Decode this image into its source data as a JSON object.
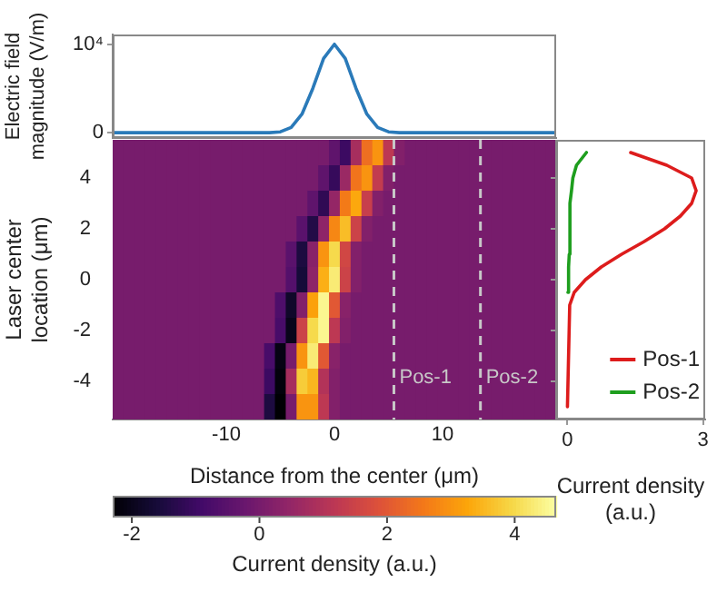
{
  "chart_data": [
    {
      "type": "line",
      "ylabel": "Electric field magnitude (V/m)",
      "x": [
        -20.5,
        -8,
        -6,
        -5,
        -4,
        -3,
        -2,
        -1,
        0,
        1,
        2,
        3,
        4,
        5,
        6,
        8,
        20.5
      ],
      "series": [
        {
          "color": "#2a7ab9",
          "values": [
            0,
            0,
            0,
            100,
            600,
            2100,
            5000,
            8400,
            10000,
            8400,
            5000,
            2100,
            600,
            100,
            0,
            0,
            0
          ]
        }
      ],
      "xlim": [
        -20.5,
        20.5
      ],
      "ylim": [
        -600,
        11100
      ],
      "yticks": [
        0,
        {
          "value": 10000,
          "label": "10⁴"
        }
      ],
      "tick_labels": "y"
    },
    {
      "type": "heatmap",
      "xlabel": "Distance from the center (μm)",
      "ylabel": "Laser center location (μm)",
      "x": [
        -20,
        -19,
        -18,
        -17,
        -16,
        -15,
        -14,
        -13,
        -12,
        -11,
        -10,
        -9,
        -8,
        -7,
        -6,
        -5,
        -4,
        -3,
        -2,
        -1,
        0,
        1,
        2,
        3,
        4,
        5,
        6,
        7,
        8,
        9,
        10,
        11,
        12,
        13,
        14,
        15,
        16,
        17,
        18,
        19,
        20
      ],
      "xlim": [
        -20.5,
        20.5
      ],
      "xticks": [
        -10,
        0,
        10
      ],
      "y_categories": [
        null,
        "4",
        null,
        "2",
        null,
        "0",
        null,
        "-2",
        null,
        "-4",
        null
      ],
      "cells": [
        [
          0,
          0,
          0,
          0,
          0,
          0,
          0,
          0,
          0,
          0,
          0,
          0,
          0,
          0,
          0,
          0,
          0,
          0,
          0,
          0,
          -0.4,
          -1,
          0.8,
          2.4,
          3,
          1.2,
          0.2,
          0,
          0,
          0,
          0,
          0,
          0,
          0,
          0,
          0,
          0,
          0,
          0,
          0,
          0
        ],
        [
          0,
          0,
          0,
          0,
          0,
          0,
          0,
          0,
          0,
          0,
          0,
          0,
          0,
          0,
          0,
          0,
          0,
          0,
          0,
          -0.4,
          -1.1,
          0.6,
          2.5,
          3,
          1.3,
          0.2,
          0,
          0,
          0,
          0,
          0,
          0,
          0,
          0,
          0,
          0,
          0,
          0,
          0,
          0,
          0
        ],
        [
          0,
          0,
          0,
          0,
          0,
          0,
          0,
          0,
          0,
          0,
          0,
          0,
          0,
          0,
          0,
          0,
          0,
          0,
          -0.4,
          -1.2,
          0.5,
          2.6,
          3.3,
          1.4,
          0.2,
          0,
          0,
          0,
          0,
          0,
          0,
          0,
          0,
          0,
          0,
          0,
          0,
          0,
          0,
          0,
          0
        ],
        [
          0,
          0,
          0,
          0,
          0,
          0,
          0,
          0,
          0,
          0,
          0,
          0,
          0,
          0,
          0,
          0,
          0,
          -0.5,
          -1.4,
          0.4,
          2.8,
          3.6,
          1.5,
          0.2,
          0,
          0,
          0,
          0,
          0,
          0,
          0,
          0,
          0,
          0,
          0,
          0,
          0,
          0,
          0,
          0,
          0
        ],
        [
          0,
          0,
          0,
          0,
          0,
          0,
          0,
          0,
          0,
          0,
          0,
          0,
          0,
          0,
          0,
          0,
          -0.5,
          -1.5,
          0.3,
          3,
          4,
          1.6,
          0.2,
          0,
          0,
          0,
          0,
          0,
          0,
          0,
          0,
          0,
          0,
          0,
          0,
          0,
          0,
          0,
          0,
          0,
          0
        ],
        [
          0,
          0,
          0,
          0,
          0,
          0,
          0,
          0,
          0,
          0,
          0,
          0,
          0,
          0,
          0,
          0,
          -0.6,
          -1.6,
          0.4,
          3.4,
          4.3,
          1.5,
          0.2,
          0,
          0,
          0,
          0,
          0,
          0,
          0,
          0,
          0,
          0,
          0,
          0,
          0,
          0,
          0,
          0,
          0,
          0
        ],
        [
          0,
          0,
          0,
          0,
          0,
          0,
          0,
          0,
          0,
          0,
          0,
          0,
          0,
          0,
          0,
          -0.7,
          -1.8,
          0.2,
          3.2,
          4.5,
          2,
          0.3,
          0,
          0,
          0,
          0,
          0,
          0,
          0,
          0,
          0,
          0,
          0,
          0,
          0,
          0,
          0,
          0,
          0,
          0,
          0
        ],
        [
          0,
          0,
          0,
          0,
          0,
          0,
          0,
          0,
          0,
          0,
          0,
          0,
          0,
          0,
          0,
          -0.8,
          -2,
          1.5,
          4,
          4.5,
          1.2,
          0.2,
          0,
          0,
          0,
          0,
          0,
          0,
          0,
          0,
          0,
          0,
          0,
          0,
          0,
          0,
          0,
          0,
          0,
          0,
          0
        ],
        [
          0,
          0,
          0,
          0,
          0,
          0,
          0,
          0,
          0,
          0,
          0,
          0,
          0,
          0,
          -0.8,
          -2.1,
          0,
          3,
          4.3,
          2,
          0.3,
          0,
          0,
          0,
          0,
          0,
          0,
          0,
          0,
          0,
          0,
          0,
          0,
          0,
          0,
          0,
          0,
          0,
          0,
          0,
          0
        ],
        [
          0,
          0,
          0,
          0,
          0,
          0,
          0,
          0,
          0,
          0,
          0,
          0,
          0,
          0,
          -1,
          -2.2,
          0.8,
          3.8,
          3.5,
          1,
          0.2,
          0,
          0,
          0,
          0,
          0,
          0,
          0,
          0,
          0,
          0,
          0,
          0,
          0,
          0,
          0,
          0,
          0,
          0,
          0,
          0
        ],
        [
          0,
          0,
          0,
          0,
          0,
          0,
          0,
          0,
          0,
          0,
          0,
          0,
          0,
          0,
          -1.5,
          -2.3,
          0,
          3,
          3,
          1.2,
          0.2,
          0,
          0,
          0,
          0,
          0,
          0,
          0,
          0,
          0,
          0,
          0,
          0,
          0,
          0,
          0,
          0,
          0,
          0,
          0,
          0
        ]
      ],
      "clim": [
        -2.3,
        4.65
      ],
      "cticks": [
        -2,
        0,
        2,
        4
      ],
      "clabel": "Current density (a.u.)",
      "ref_lines": [
        {
          "axis": "x",
          "value": 5.5,
          "label": "Pos-1",
          "color": "#c8c8c8",
          "line_style": "dashed"
        },
        {
          "axis": "x",
          "value": 13.5,
          "label": "Pos-2",
          "color": "#c8c8c8",
          "line_style": "dashed"
        }
      ]
    },
    {
      "type": "line",
      "orientation": "horizontal",
      "xlabel": "Current density (a.u.)",
      "x": [
        -5,
        -1,
        -0.5,
        0,
        0.5,
        1,
        1.5,
        2,
        2.5,
        3,
        3.5,
        4,
        4.5,
        5
      ],
      "series": [
        {
          "name": "Pos-1",
          "color": "#dd1c1c",
          "values": [
            0,
            0.05,
            0.15,
            0.4,
            0.75,
            1.2,
            1.7,
            2.15,
            2.5,
            2.75,
            2.85,
            2.75,
            2.2,
            1.4
          ]
        },
        {
          "name": "Pos-2",
          "color": "#1e9e1e",
          "values": [
            null,
            null,
            0.01,
            0.02,
            0.03,
            0.04,
            0.04,
            0.05,
            0.06,
            0.07,
            0.09,
            0.12,
            0.2,
            0.42
          ]
        }
      ],
      "xlim": [
        -0.25,
        3.05
      ],
      "xticks": [
        0,
        3
      ],
      "ylim": [
        -5.5,
        5.5
      ],
      "yticks": [
        -4,
        -2,
        0,
        2,
        4
      ],
      "tick_labels": "x",
      "legend": "bottom right"
    }
  ]
}
